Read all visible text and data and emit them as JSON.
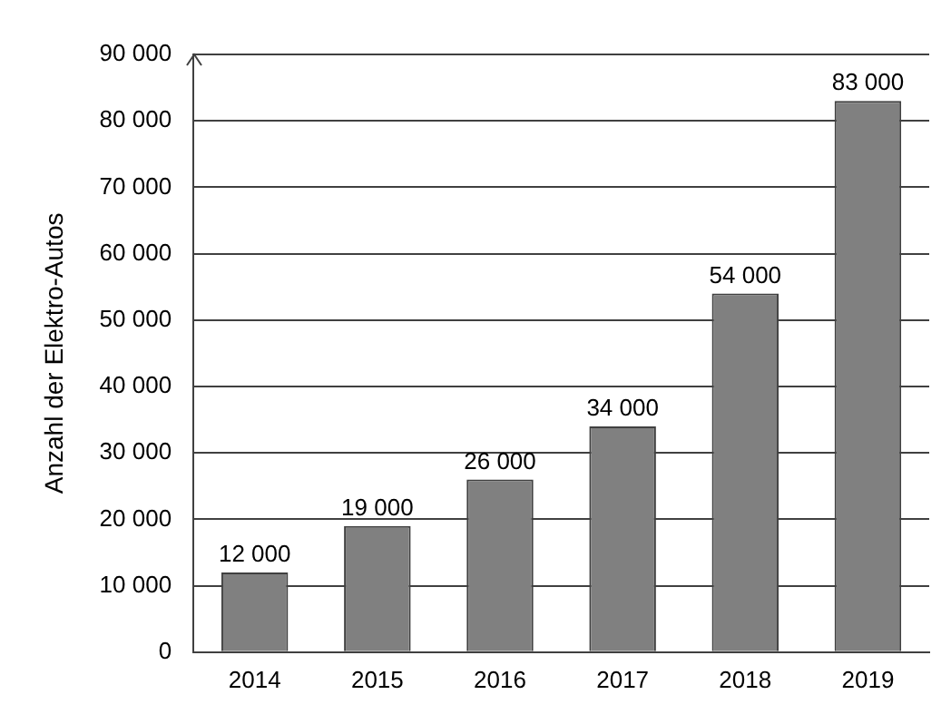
{
  "chart_data": {
    "type": "bar",
    "ylabel": "Anzahl der Elektro-Autos",
    "categories": [
      "2014",
      "2015",
      "2016",
      "2017",
      "2018",
      "2019"
    ],
    "values": [
      12000,
      19000,
      26000,
      34000,
      54000,
      83000
    ],
    "value_labels": [
      "12 000",
      "19 000",
      "26 000",
      "34 000",
      "54 000",
      "83 000"
    ],
    "color": "#808080",
    "ylim": [
      0,
      90000
    ],
    "yticks": [
      {
        "value": 0,
        "label": "0"
      },
      {
        "value": 10000,
        "label": "10 000"
      },
      {
        "value": 20000,
        "label": "20 000"
      },
      {
        "value": 30000,
        "label": "30 000"
      },
      {
        "value": 40000,
        "label": "40 000"
      },
      {
        "value": 50000,
        "label": "50 000"
      },
      {
        "value": 60000,
        "label": "60 000"
      },
      {
        "value": 70000,
        "label": "70 000"
      },
      {
        "value": 80000,
        "label": "80 000"
      },
      {
        "value": 90000,
        "label": "90 000"
      }
    ],
    "grid": "y"
  }
}
